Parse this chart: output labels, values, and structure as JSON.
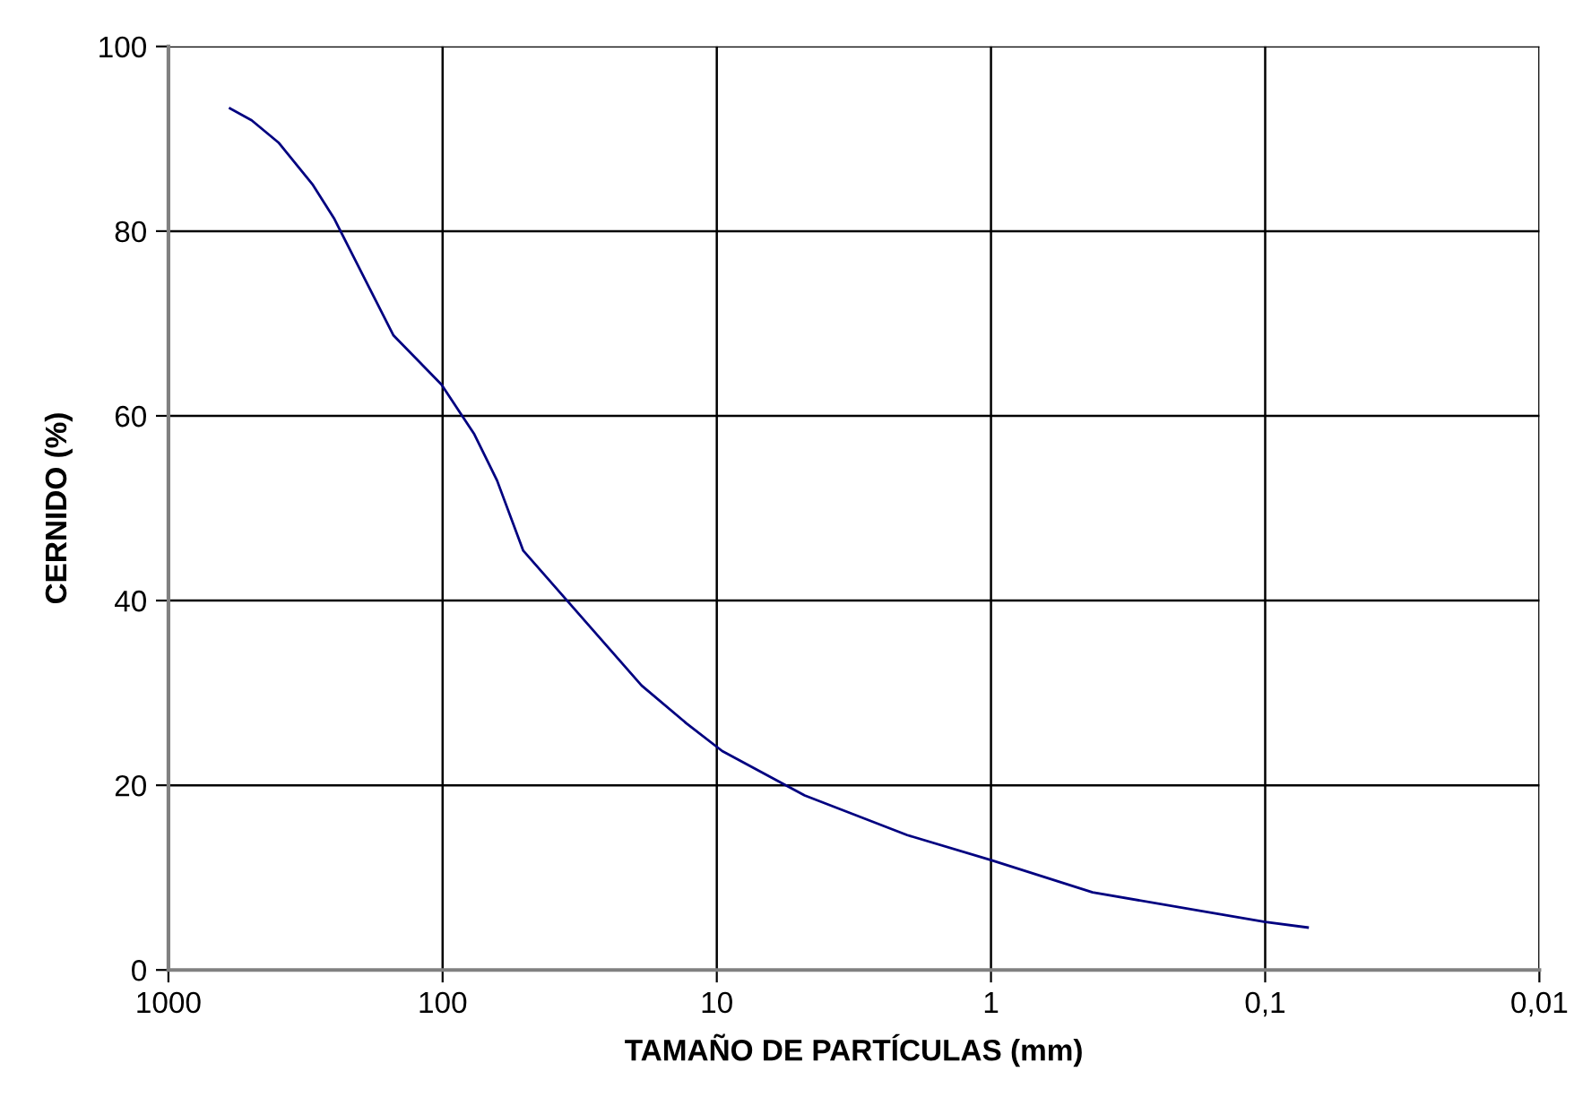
{
  "chart_data": {
    "type": "line",
    "xlabel": "TAMAÑO DE PARTÍCULAS (mm)",
    "ylabel": "CERNIDO (%)",
    "log": "x",
    "grid": true,
    "marker": "none",
    "line_style": "solid",
    "xlim": [
      1000,
      0.01
    ],
    "xticks": [
      1000,
      100,
      10,
      1,
      {
        "value": 0.1,
        "label": "0,1"
      },
      {
        "value": 0.01,
        "label": "0,01"
      }
    ],
    "ylim": [
      0,
      100
    ],
    "yticks": [
      0,
      20,
      40,
      60,
      80,
      100
    ],
    "series": [
      {
        "color": "#000080",
        "x": [
          596,
          497,
          397,
          297,
          249,
          151,
          101,
          76.6,
          63.3,
          50.8,
          18.8,
          12.9,
          9.55,
          4.78,
          2.02,
          1.0,
          0.426,
          0.1,
          0.07
        ],
        "values": [
          93.3,
          92.0,
          89.6,
          85.0,
          81.4,
          68.7,
          63.4,
          58.0,
          53.0,
          45.4,
          30.8,
          26.7,
          23.7,
          18.9,
          14.6,
          11.9,
          8.4,
          5.2,
          4.6
        ]
      }
    ]
  }
}
